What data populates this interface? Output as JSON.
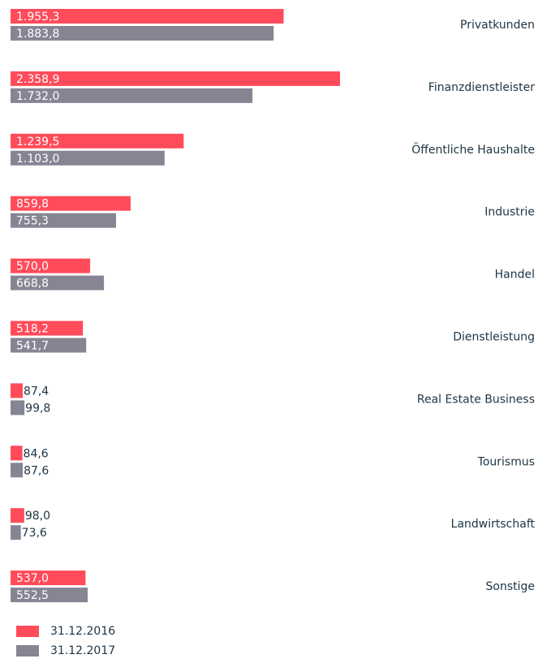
{
  "chart_data": {
    "type": "bar",
    "orientation": "horizontal",
    "categories": [
      "Privatkunden",
      "Finanzdienstleister",
      "Öffentliche Haushalte",
      "Industrie",
      "Handel",
      "Dienstleistung",
      "Real Estate Business",
      "Tourismus",
      "Landwirtschaft",
      "Sonstige"
    ],
    "series": [
      {
        "name": "31.12.2016",
        "color": "#ff4b5a",
        "values": [
          1955.3,
          2358.9,
          1239.5,
          859.8,
          570.0,
          518.2,
          87.4,
          84.6,
          98.0,
          537.0
        ],
        "value_labels": [
          "1.955,3",
          "2.358,9",
          "1.239,5",
          "859,8",
          "570,0",
          "518,2",
          "87,4",
          "84,6",
          "98,0",
          "537,0"
        ]
      },
      {
        "name": "31.12.2017",
        "color": "#868594",
        "values": [
          1883.8,
          1732.0,
          1103.0,
          755.3,
          668.8,
          541.7,
          99.8,
          87.6,
          73.6,
          552.5
        ],
        "value_labels": [
          "1.883,8",
          "1.732,0",
          "1.103,0",
          "755,3",
          "668,8",
          "541,7",
          "99,8",
          "87,6",
          "73,6",
          "552,5"
        ]
      }
    ],
    "legend": "bottom-left"
  }
}
